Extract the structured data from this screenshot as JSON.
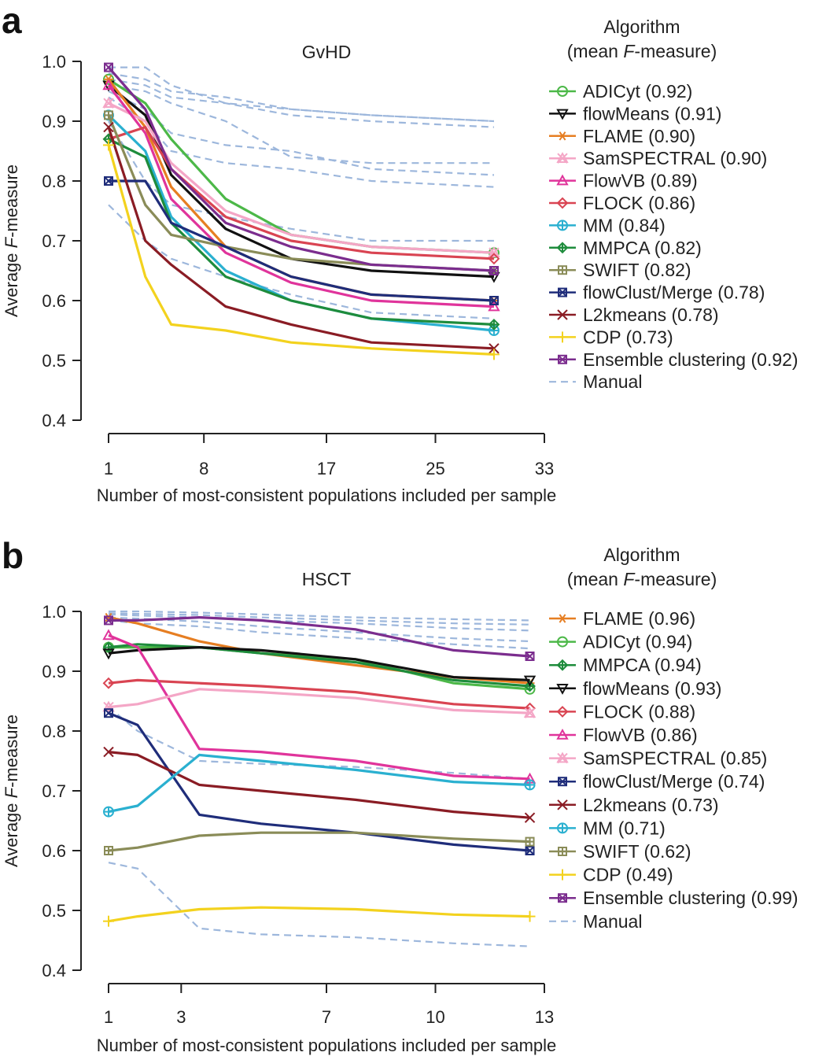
{
  "chart_data": [
    {
      "type": "line",
      "panel": "a",
      "title": "GvHD",
      "xlabel": "Number of most-consistent populations included per sample",
      "ylabel_prefix": "Average ",
      "ylabel_italic": "F",
      "ylabel_suffix": "-measure",
      "xlim": [
        1,
        33
      ],
      "ylim": [
        0.4,
        1.0
      ],
      "xticks": [
        1,
        8,
        17,
        25,
        33
      ],
      "xtick_labels": [
        "1",
        "8",
        "17",
        "25",
        "33"
      ],
      "yticks": [
        1.0,
        0.9,
        0.8,
        0.7,
        0.6,
        0.5,
        0.4
      ],
      "ytick_labels": [
        "1.0",
        "0.9",
        "0.8",
        "0.7",
        "0.6",
        "0.5",
        "0.4"
      ],
      "x": [
        1,
        3.7,
        5.6,
        9.6,
        14.4,
        20.3,
        29.3
      ],
      "legend": {
        "title_line1": "Algorithm",
        "title_line2_prefix": "(mean ",
        "title_line2_italic": "F",
        "title_line2_suffix": "-measure)"
      },
      "series": [
        {
          "name": "ADICyt",
          "mean": "(0.92)",
          "color": "#4cb848",
          "marker": "circle",
          "values": [
            0.97,
            0.93,
            0.87,
            0.77,
            0.71,
            0.69,
            0.68
          ]
        },
        {
          "name": "flowMeans",
          "mean": "(0.91)",
          "color": "#111111",
          "marker": "triangle-down",
          "values": [
            0.96,
            0.91,
            0.81,
            0.72,
            0.67,
            0.65,
            0.64
          ]
        },
        {
          "name": "FLAME",
          "mean": "(0.90)",
          "color": "#e67e22",
          "marker": "star",
          "values": [
            0.97,
            0.89,
            0.79,
            0.69,
            0.64,
            0.61,
            0.6
          ]
        },
        {
          "name": "SamSPECTRAL",
          "mean": "(0.90)",
          "color": "#f4a6c6",
          "marker": "triangle-up-x",
          "values": [
            0.93,
            0.9,
            0.83,
            0.75,
            0.71,
            0.69,
            0.68
          ]
        },
        {
          "name": "FlowVB",
          "mean": "(0.89)",
          "color": "#e0349b",
          "marker": "triangle-up",
          "values": [
            0.96,
            0.88,
            0.77,
            0.68,
            0.63,
            0.6,
            0.59
          ]
        },
        {
          "name": "FLOCK",
          "mean": "(0.86)",
          "color": "#d94452",
          "marker": "diamond",
          "values": [
            0.87,
            0.89,
            0.82,
            0.74,
            0.7,
            0.68,
            0.67
          ]
        },
        {
          "name": "MM",
          "mean": "(0.84)",
          "color": "#2ab0d0",
          "marker": "circle-plus",
          "values": [
            0.91,
            0.85,
            0.74,
            0.65,
            0.6,
            0.57,
            0.55
          ]
        },
        {
          "name": "MMPCA",
          "mean": "(0.82)",
          "color": "#1e8c3c",
          "marker": "diamond-plus",
          "values": [
            0.87,
            0.84,
            0.73,
            0.64,
            0.6,
            0.57,
            0.56
          ]
        },
        {
          "name": "SWIFT",
          "mean": "(0.82)",
          "color": "#8a8c58",
          "marker": "square-plus",
          "values": [
            0.91,
            0.76,
            0.71,
            0.69,
            0.67,
            0.66,
            0.65
          ]
        },
        {
          "name": "flowClust/Merge",
          "mean": "(0.78)",
          "color": "#1f2d7a",
          "marker": "square-x",
          "values": [
            0.8,
            0.8,
            0.73,
            0.69,
            0.64,
            0.61,
            0.6
          ]
        },
        {
          "name": "L2kmeans",
          "mean": "(0.78)",
          "color": "#8a1c24",
          "marker": "x",
          "values": [
            0.89,
            0.7,
            0.66,
            0.59,
            0.56,
            0.53,
            0.52
          ]
        },
        {
          "name": "CDP",
          "mean": "(0.73)",
          "color": "#f3d21e",
          "marker": "plus",
          "values": [
            0.86,
            0.64,
            0.56,
            0.55,
            0.53,
            0.52,
            0.51
          ]
        },
        {
          "name": "Ensemble clustering",
          "mean": "(0.92)",
          "color": "#7b2d8e",
          "marker": "square-x",
          "values": [
            0.99,
            0.92,
            0.82,
            0.73,
            0.69,
            0.66,
            0.65
          ]
        }
      ],
      "manual": {
        "name": "Manual",
        "color": "#9db7dc",
        "series": [
          [
            0.99,
            0.99,
            0.96,
            0.93,
            0.92,
            0.91,
            0.9
          ],
          [
            0.98,
            0.97,
            0.95,
            0.94,
            0.92,
            0.91,
            0.9
          ],
          [
            0.97,
            0.96,
            0.94,
            0.93,
            0.91,
            0.9,
            0.89
          ],
          [
            0.96,
            0.95,
            0.93,
            0.9,
            0.84,
            0.83,
            0.83
          ],
          [
            0.95,
            0.92,
            0.88,
            0.86,
            0.85,
            0.82,
            0.81
          ],
          [
            0.94,
            0.9,
            0.85,
            0.83,
            0.82,
            0.8,
            0.79
          ],
          [
            0.9,
            0.8,
            0.76,
            0.74,
            0.72,
            0.7,
            0.7
          ],
          [
            0.76,
            0.7,
            0.67,
            0.64,
            0.61,
            0.58,
            0.57
          ]
        ]
      }
    },
    {
      "type": "line",
      "panel": "b",
      "title": "HSCT",
      "xlabel": "Number of most-consistent populations included per sample",
      "ylabel_prefix": "Average ",
      "ylabel_italic": "F",
      "ylabel_suffix": "-measure",
      "xlim": [
        1,
        13
      ],
      "ylim": [
        0.4,
        1.0
      ],
      "xticks": [
        1,
        3,
        7,
        10,
        13
      ],
      "xtick_labels": [
        "1",
        "3",
        "7",
        "10",
        "13"
      ],
      "yticks": [
        1.0,
        0.9,
        0.8,
        0.7,
        0.6,
        0.5,
        0.4
      ],
      "ytick_labels": [
        "1.0",
        "0.9",
        "0.8",
        "0.7",
        "0.6",
        "0.5",
        "0.4"
      ],
      "x": [
        1,
        1.8,
        3.5,
        5.2,
        7.8,
        10.5,
        12.6
      ],
      "legend": {
        "title_line1": "Algorithm",
        "title_line2_prefix": "(mean ",
        "title_line2_italic": "F",
        "title_line2_suffix": "-measure)"
      },
      "series": [
        {
          "name": "FLAME",
          "mean": "(0.96)",
          "color": "#e67e22",
          "marker": "star",
          "values": [
            0.99,
            0.98,
            0.95,
            0.93,
            0.91,
            0.89,
            0.88
          ]
        },
        {
          "name": "ADICyt",
          "mean": "(0.94)",
          "color": "#4cb848",
          "marker": "circle",
          "values": [
            0.94,
            0.94,
            0.94,
            0.93,
            0.92,
            0.88,
            0.87
          ]
        },
        {
          "name": "MMPCA",
          "mean": "(0.94)",
          "color": "#1e8c3c",
          "marker": "diamond-plus",
          "values": [
            0.94,
            0.945,
            0.94,
            0.93,
            0.915,
            0.885,
            0.875
          ]
        },
        {
          "name": "flowMeans",
          "mean": "(0.93)",
          "color": "#111111",
          "marker": "triangle-down",
          "values": [
            0.93,
            0.935,
            0.94,
            0.935,
            0.92,
            0.89,
            0.885
          ]
        },
        {
          "name": "FLOCK",
          "mean": "(0.88)",
          "color": "#d94452",
          "marker": "diamond",
          "values": [
            0.88,
            0.885,
            0.88,
            0.875,
            0.865,
            0.845,
            0.838
          ]
        },
        {
          "name": "FlowVB",
          "mean": "(0.86)",
          "color": "#e0349b",
          "marker": "triangle-up",
          "values": [
            0.96,
            0.94,
            0.77,
            0.765,
            0.75,
            0.725,
            0.72
          ]
        },
        {
          "name": "SamSPECTRAL",
          "mean": "(0.85)",
          "color": "#f4a6c6",
          "marker": "triangle-up-x",
          "values": [
            0.84,
            0.845,
            0.87,
            0.865,
            0.855,
            0.835,
            0.83
          ]
        },
        {
          "name": "flowClust/Merge",
          "mean": "(0.74)",
          "color": "#1f2d7a",
          "marker": "square-x",
          "values": [
            0.83,
            0.81,
            0.66,
            0.645,
            0.63,
            0.61,
            0.6
          ]
        },
        {
          "name": "L2kmeans",
          "mean": "(0.73)",
          "color": "#8a1c24",
          "marker": "x",
          "values": [
            0.765,
            0.76,
            0.71,
            0.7,
            0.685,
            0.665,
            0.655
          ]
        },
        {
          "name": "MM",
          "mean": "(0.71)",
          "color": "#2ab0d0",
          "marker": "circle-plus",
          "values": [
            0.665,
            0.675,
            0.76,
            0.75,
            0.735,
            0.715,
            0.71
          ]
        },
        {
          "name": "SWIFT",
          "mean": "(0.62)",
          "color": "#8a8c58",
          "marker": "square-plus",
          "values": [
            0.6,
            0.605,
            0.625,
            0.63,
            0.63,
            0.62,
            0.615
          ]
        },
        {
          "name": "CDP",
          "mean": "(0.49)",
          "color": "#f3d21e",
          "marker": "plus",
          "values": [
            0.482,
            0.49,
            0.502,
            0.505,
            0.502,
            0.493,
            0.49
          ]
        },
        {
          "name": "Ensemble clustering",
          "mean": "(0.99)",
          "color": "#7b2d8e",
          "marker": "square-x",
          "values": [
            0.985,
            0.985,
            0.99,
            0.985,
            0.97,
            0.935,
            0.925
          ]
        }
      ],
      "manual": {
        "name": "Manual",
        "color": "#9db7dc",
        "series": [
          [
            1.0,
            1.0,
            0.998,
            0.995,
            0.99,
            0.987,
            0.985
          ],
          [
            0.997,
            0.996,
            0.994,
            0.99,
            0.985,
            0.98,
            0.978
          ],
          [
            0.995,
            0.993,
            0.99,
            0.985,
            0.98,
            0.972,
            0.968
          ],
          [
            0.99,
            0.988,
            0.983,
            0.975,
            0.965,
            0.955,
            0.95
          ],
          [
            0.985,
            0.98,
            0.975,
            0.965,
            0.955,
            0.945,
            0.938
          ],
          [
            0.84,
            0.8,
            0.75,
            0.745,
            0.74,
            0.73,
            0.72
          ],
          [
            0.58,
            0.57,
            0.47,
            0.46,
            0.455,
            0.445,
            0.44
          ]
        ]
      }
    }
  ]
}
